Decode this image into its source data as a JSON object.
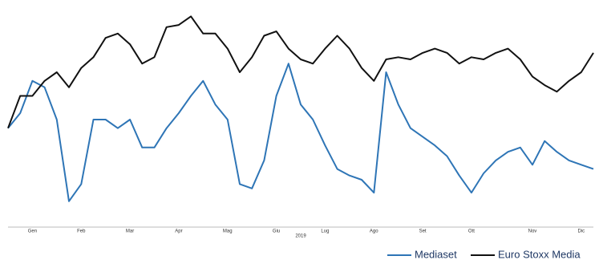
{
  "chart_data": {
    "type": "line",
    "categories": [
      null,
      null,
      "Gen",
      null,
      null,
      null,
      "Feb",
      null,
      null,
      null,
      "Mar",
      null,
      null,
      null,
      "Apr",
      null,
      null,
      null,
      "Mag",
      null,
      null,
      null,
      "Giu",
      null,
      null,
      null,
      "Lug",
      null,
      null,
      null,
      "Ago",
      null,
      null,
      null,
      "Set",
      null,
      null,
      null,
      "Ott",
      null,
      null,
      null,
      null,
      "Nov",
      null,
      null,
      null,
      "Dic",
      null
    ],
    "x_label": "2019",
    "ylim": [
      0,
      100
    ],
    "series": [
      {
        "name": "Mediaset",
        "color": "#2e75b6",
        "values": [
          46,
          53,
          68,
          65,
          50,
          12,
          20,
          50,
          50,
          46,
          50,
          37,
          37,
          46,
          53,
          61,
          68,
          57,
          50,
          20,
          18,
          31,
          61,
          76,
          57,
          50,
          38,
          27,
          24,
          22,
          16,
          72,
          57,
          46,
          42,
          38,
          33,
          24,
          16,
          25,
          31,
          35,
          37,
          29,
          40,
          35,
          31,
          29,
          27
        ]
      },
      {
        "name": "Euro Stoxx Media",
        "color": "#111111",
        "values": [
          46,
          61,
          61,
          68,
          72,
          65,
          74,
          79,
          88,
          90,
          85,
          76,
          79,
          93,
          94,
          98,
          90,
          90,
          83,
          72,
          79,
          89,
          91,
          83,
          78,
          76,
          83,
          89,
          83,
          74,
          68,
          78,
          79,
          78,
          81,
          83,
          81,
          76,
          79,
          78,
          81,
          83,
          78,
          70,
          66,
          63,
          68,
          72,
          81
        ]
      }
    ],
    "legend": "bottom-right"
  }
}
